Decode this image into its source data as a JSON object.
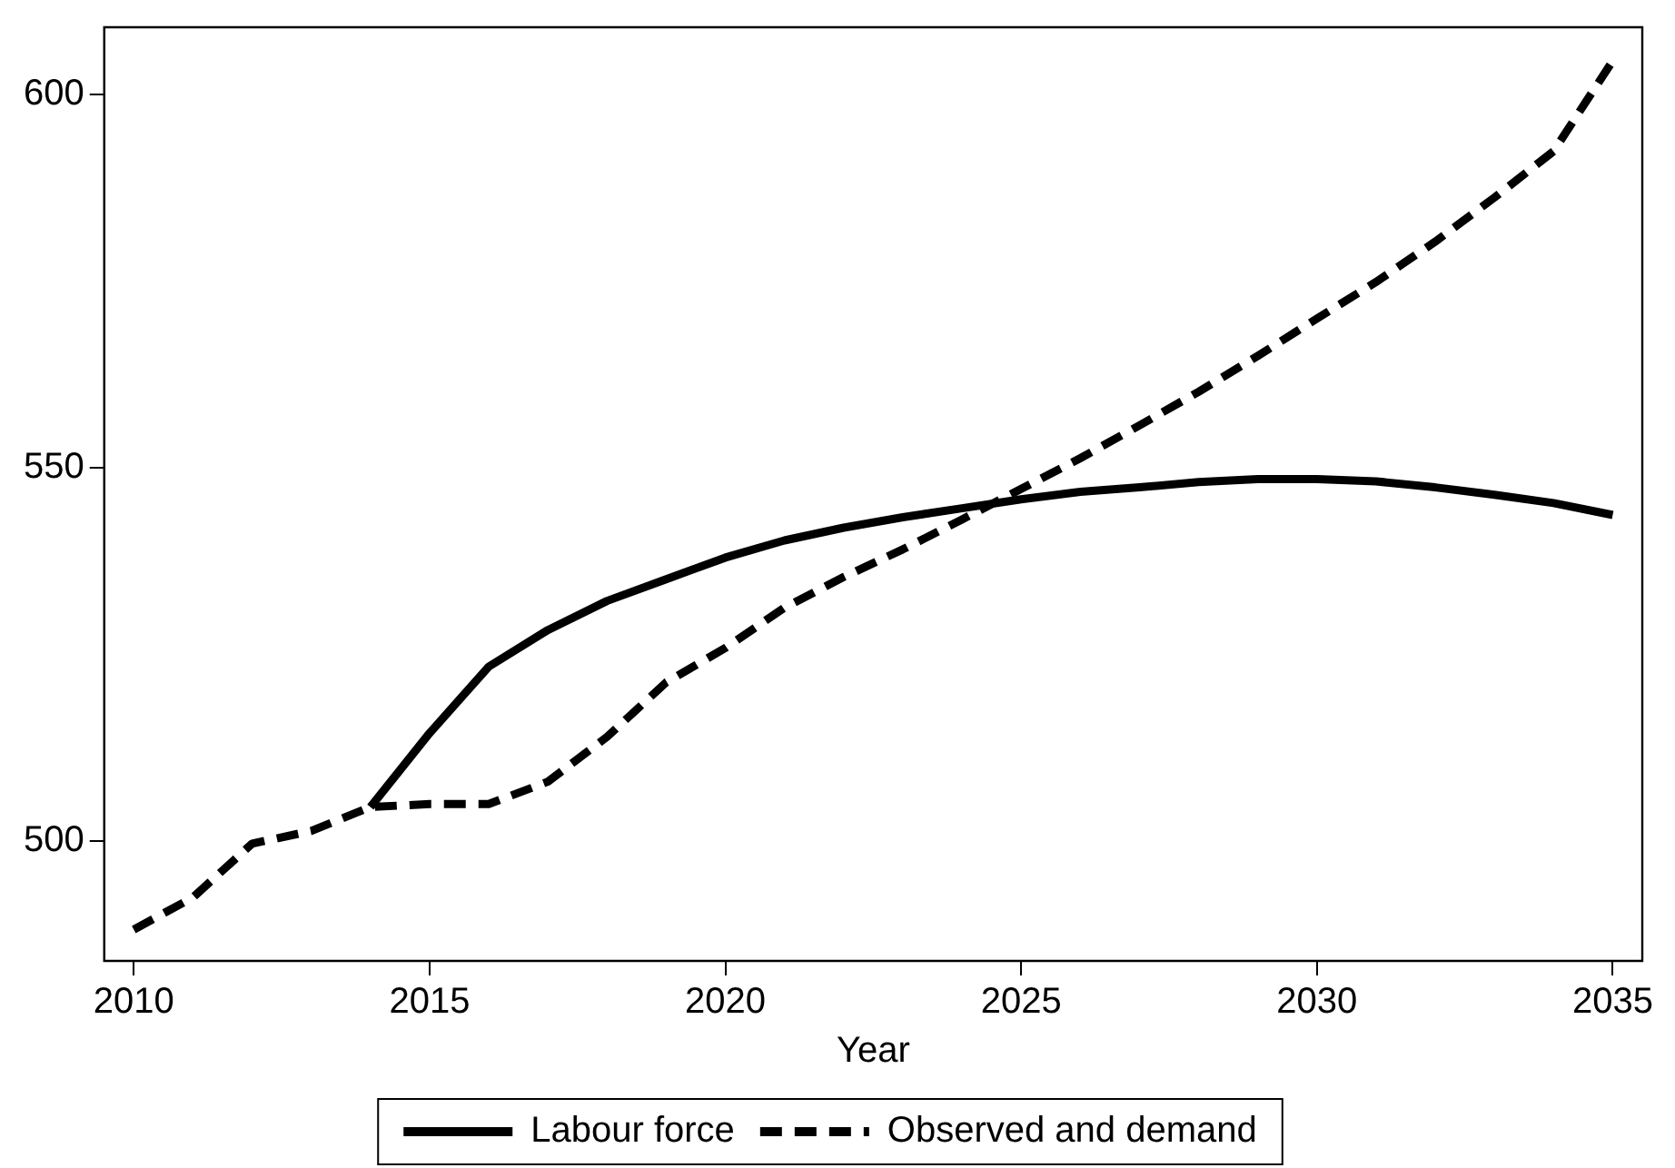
{
  "chart_data": {
    "type": "line",
    "xlabel": "Year",
    "x": [
      2010,
      2011,
      2012,
      2013,
      2014,
      2015,
      2016,
      2017,
      2018,
      2019,
      2020,
      2021,
      2022,
      2023,
      2024,
      2025,
      2026,
      2027,
      2028,
      2029,
      2030,
      2031,
      2032,
      2033,
      2034,
      2035
    ],
    "series": [
      {
        "name": "Labour force",
        "color": "#000000",
        "line_style": "solid",
        "values": [
          null,
          null,
          null,
          null,
          504.6,
          514.5,
          523.4,
          528.3,
          532.2,
          535.1,
          538,
          540.3,
          542,
          543.4,
          544.6,
          545.8,
          546.8,
          547.4,
          548.1,
          548.5,
          548.5,
          548.2,
          547.4,
          546.4,
          545.3,
          543.7
        ]
      },
      {
        "name": "Observed and demand",
        "color": "#000000",
        "line_style": "dashed",
        "values": [
          488.2,
          492.5,
          499.7,
          501.4,
          504.6,
          505,
          505,
          508,
          514,
          521.3,
          525.9,
          531.3,
          535.4,
          539.1,
          543.1,
          547.2,
          551.3,
          555.7,
          560.2,
          565,
          570,
          574.9,
          580.3,
          586.2,
          592.4,
          604.5
        ]
      }
    ],
    "xlim": [
      2009.5,
      2035.5
    ],
    "xticks": [
      2010,
      2015,
      2020,
      2025,
      2030,
      2035
    ],
    "ylim": [
      484,
      609
    ],
    "yticks": [
      500,
      550,
      600
    ],
    "grid": false,
    "legend": "bottom",
    "marker": "none"
  }
}
